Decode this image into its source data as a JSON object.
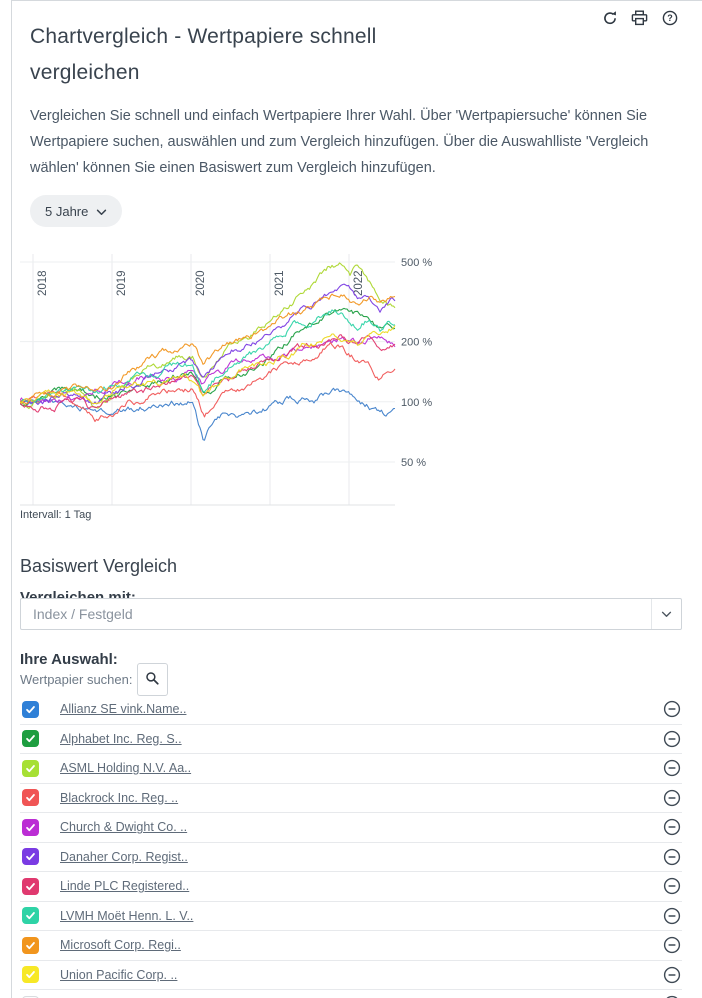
{
  "header": {
    "title": "Chartvergleich - Wertpapiere schnell vergleichen",
    "actions": [
      {
        "name": "refresh",
        "icon": "refresh-icon"
      },
      {
        "name": "print",
        "icon": "printer-icon"
      },
      {
        "name": "help",
        "icon": "help-icon"
      }
    ]
  },
  "intro": {
    "text": "Vergleichen Sie schnell und einfach Wertpapiere Ihrer Wahl. Über 'Wertpapiersuche' können Sie Wertpapiere suchen, auswählen und zum Vergleich hinzufügen. Über die Auswahlliste 'Vergleich wählen' können Sie einen Basiswert zum Vergleich hinzufügen."
  },
  "period_selector": {
    "label": "5 Jahre"
  },
  "chart_data": {
    "type": "line",
    "title": "",
    "x_ticks": [
      "2018",
      "2019",
      "2020",
      "2021",
      "2022"
    ],
    "y_scale": "log",
    "y_unit": "%",
    "y_ticks": [
      {
        "value": 500,
        "label": "500 %"
      },
      {
        "value": 200,
        "label": "200 %"
      },
      {
        "value": 100,
        "label": "100 %"
      },
      {
        "value": 50,
        "label": "50 %"
      }
    ],
    "y_range": [
      30,
      520
    ],
    "grid": true,
    "legend_position": "none",
    "interval_note": "Intervall: 1 Tag",
    "series": [
      {
        "name": "Allianz SE vink.Name..",
        "color": "#3f7fca",
        "points": [
          [
            0,
            100
          ],
          [
            0.1,
            98
          ],
          [
            0.2,
            88
          ],
          [
            0.246,
            85
          ],
          [
            0.35,
            95
          ],
          [
            0.42,
            100
          ],
          [
            0.46,
            101
          ],
          [
            0.49,
            60
          ],
          [
            0.52,
            80
          ],
          [
            0.55,
            85
          ],
          [
            0.6,
            82
          ],
          [
            0.67,
            95
          ],
          [
            0.72,
            105
          ],
          [
            0.78,
            102
          ],
          [
            0.82,
            110
          ],
          [
            0.86,
            112
          ],
          [
            0.9,
            105
          ],
          [
            0.94,
            95
          ],
          [
            0.97,
            88
          ],
          [
            1,
            92
          ]
        ]
      },
      {
        "name": "Alphabet Inc. Reg. S..",
        "color": "#1e9e40",
        "points": [
          [
            0,
            100
          ],
          [
            0.08,
            110
          ],
          [
            0.15,
            115
          ],
          [
            0.2,
            105
          ],
          [
            0.246,
            106
          ],
          [
            0.3,
            115
          ],
          [
            0.35,
            120
          ],
          [
            0.42,
            130
          ],
          [
            0.46,
            135
          ],
          [
            0.49,
            110
          ],
          [
            0.55,
            135
          ],
          [
            0.6,
            145
          ],
          [
            0.67,
            165
          ],
          [
            0.72,
            200
          ],
          [
            0.78,
            240
          ],
          [
            0.82,
            270
          ],
          [
            0.86,
            290
          ],
          [
            0.9,
            270
          ],
          [
            0.93,
            250
          ],
          [
            0.96,
            230
          ],
          [
            1,
            240
          ]
        ]
      },
      {
        "name": "ASML Holding N.V. Aa..",
        "color": "#abd62c",
        "points": [
          [
            0,
            100
          ],
          [
            0.08,
            105
          ],
          [
            0.15,
            112
          ],
          [
            0.2,
            95
          ],
          [
            0.246,
            110
          ],
          [
            0.3,
            125
          ],
          [
            0.35,
            140
          ],
          [
            0.42,
            160
          ],
          [
            0.46,
            165
          ],
          [
            0.49,
            130
          ],
          [
            0.55,
            180
          ],
          [
            0.6,
            200
          ],
          [
            0.67,
            250
          ],
          [
            0.72,
            300
          ],
          [
            0.78,
            380
          ],
          [
            0.82,
            460
          ],
          [
            0.85,
            500
          ],
          [
            0.88,
            430
          ],
          [
            0.9,
            480
          ],
          [
            0.93,
            400
          ],
          [
            0.96,
            330
          ],
          [
            1,
            290
          ]
        ]
      },
      {
        "name": "Blackrock Inc. Reg. ..",
        "color": "#f05555",
        "points": [
          [
            0,
            100
          ],
          [
            0.08,
            105
          ],
          [
            0.15,
            95
          ],
          [
            0.2,
            85
          ],
          [
            0.246,
            92
          ],
          [
            0.3,
            100
          ],
          [
            0.35,
            105
          ],
          [
            0.42,
            115
          ],
          [
            0.46,
            116
          ],
          [
            0.49,
            85
          ],
          [
            0.55,
            110
          ],
          [
            0.6,
            115
          ],
          [
            0.67,
            140
          ],
          [
            0.72,
            160
          ],
          [
            0.78,
            175
          ],
          [
            0.82,
            195
          ],
          [
            0.86,
            190
          ],
          [
            0.9,
            160
          ],
          [
            0.93,
            150
          ],
          [
            0.96,
            130
          ],
          [
            1,
            145
          ]
        ]
      },
      {
        "name": "Church & Dwight Co. ..",
        "color": "#bb2dd4",
        "points": [
          [
            0,
            100
          ],
          [
            0.08,
            105
          ],
          [
            0.15,
            110
          ],
          [
            0.2,
            115
          ],
          [
            0.246,
            120
          ],
          [
            0.3,
            130
          ],
          [
            0.35,
            140
          ],
          [
            0.42,
            135
          ],
          [
            0.46,
            140
          ],
          [
            0.49,
            125
          ],
          [
            0.55,
            150
          ],
          [
            0.6,
            160
          ],
          [
            0.67,
            165
          ],
          [
            0.72,
            170
          ],
          [
            0.78,
            185
          ],
          [
            0.82,
            200
          ],
          [
            0.86,
            210
          ],
          [
            0.9,
            200
          ],
          [
            0.93,
            215
          ],
          [
            0.96,
            205
          ],
          [
            1,
            195
          ]
        ]
      },
      {
        "name": "Danaher Corp. Regist..",
        "color": "#7a3be3",
        "points": [
          [
            0,
            100
          ],
          [
            0.08,
            102
          ],
          [
            0.15,
            108
          ],
          [
            0.2,
            100
          ],
          [
            0.246,
            110
          ],
          [
            0.3,
            125
          ],
          [
            0.35,
            135
          ],
          [
            0.42,
            150
          ],
          [
            0.46,
            160
          ],
          [
            0.49,
            130
          ],
          [
            0.55,
            175
          ],
          [
            0.6,
            195
          ],
          [
            0.67,
            220
          ],
          [
            0.72,
            270
          ],
          [
            0.78,
            300
          ],
          [
            0.82,
            330
          ],
          [
            0.86,
            360
          ],
          [
            0.9,
            330
          ],
          [
            0.93,
            345
          ],
          [
            0.96,
            310
          ],
          [
            1,
            330
          ]
        ]
      },
      {
        "name": "Linde PLC Registered..",
        "color": "#e0396f",
        "points": [
          [
            0,
            100
          ],
          [
            0.08,
            98
          ],
          [
            0.15,
            100
          ],
          [
            0.2,
            90
          ],
          [
            0.246,
            100
          ],
          [
            0.3,
            110
          ],
          [
            0.35,
            115
          ],
          [
            0.42,
            125
          ],
          [
            0.46,
            130
          ],
          [
            0.49,
            105
          ],
          [
            0.55,
            130
          ],
          [
            0.6,
            140
          ],
          [
            0.67,
            155
          ],
          [
            0.72,
            170
          ],
          [
            0.78,
            180
          ],
          [
            0.82,
            195
          ],
          [
            0.86,
            200
          ],
          [
            0.9,
            185
          ],
          [
            0.93,
            200
          ],
          [
            0.96,
            175
          ],
          [
            1,
            190
          ]
        ]
      },
      {
        "name": "LVMH Moët Henn. L. V..",
        "color": "#2ed3a6",
        "points": [
          [
            0,
            100
          ],
          [
            0.08,
            108
          ],
          [
            0.15,
            118
          ],
          [
            0.2,
            105
          ],
          [
            0.246,
            115
          ],
          [
            0.3,
            135
          ],
          [
            0.35,
            140
          ],
          [
            0.42,
            155
          ],
          [
            0.46,
            150
          ],
          [
            0.49,
            115
          ],
          [
            0.55,
            150
          ],
          [
            0.6,
            165
          ],
          [
            0.67,
            200
          ],
          [
            0.72,
            240
          ],
          [
            0.78,
            260
          ],
          [
            0.82,
            290
          ],
          [
            0.86,
            300
          ],
          [
            0.9,
            250
          ],
          [
            0.93,
            270
          ],
          [
            0.96,
            230
          ],
          [
            1,
            255
          ]
        ]
      },
      {
        "name": "Microsoft Corp. Regi..",
        "color": "#f1951d",
        "points": [
          [
            0,
            100
          ],
          [
            0.08,
            110
          ],
          [
            0.15,
            120
          ],
          [
            0.2,
            115
          ],
          [
            0.246,
            125
          ],
          [
            0.3,
            145
          ],
          [
            0.35,
            160
          ],
          [
            0.42,
            185
          ],
          [
            0.46,
            200
          ],
          [
            0.49,
            150
          ],
          [
            0.55,
            200
          ],
          [
            0.6,
            215
          ],
          [
            0.67,
            235
          ],
          [
            0.72,
            270
          ],
          [
            0.78,
            300
          ],
          [
            0.82,
            330
          ],
          [
            0.86,
            350
          ],
          [
            0.9,
            310
          ],
          [
            0.93,
            330
          ],
          [
            0.96,
            290
          ],
          [
            1,
            320
          ]
        ]
      },
      {
        "name": "Union Pacific Corp. ..",
        "color": "#ecd81f",
        "points": [
          [
            0,
            100
          ],
          [
            0.08,
            108
          ],
          [
            0.15,
            115
          ],
          [
            0.2,
            105
          ],
          [
            0.246,
            115
          ],
          [
            0.3,
            125
          ],
          [
            0.35,
            130
          ],
          [
            0.42,
            140
          ],
          [
            0.46,
            135
          ],
          [
            0.49,
            105
          ],
          [
            0.55,
            140
          ],
          [
            0.6,
            150
          ],
          [
            0.67,
            160
          ],
          [
            0.72,
            175
          ],
          [
            0.78,
            195
          ],
          [
            0.82,
            210
          ],
          [
            0.86,
            205
          ],
          [
            0.9,
            195
          ],
          [
            0.93,
            225
          ],
          [
            0.96,
            215
          ],
          [
            1,
            230
          ]
        ]
      }
    ]
  },
  "comparison": {
    "heading": "Basiswert Vergleich",
    "compare_label": "Vergleichen mit:",
    "select_value": "Index / Festgeld",
    "selection_label": "Ihre Auswahl:",
    "search_label": "Wertpapier suchen:"
  },
  "securities": [
    {
      "label": "Allianz SE vink.Name..",
      "color": "#2f80d7",
      "checked": true
    },
    {
      "label": "Alphabet Inc. Reg. S..",
      "color": "#1e9e40",
      "checked": true
    },
    {
      "label": "ASML Holding N.V. Aa..",
      "color": "#a6e034",
      "checked": true
    },
    {
      "label": "Blackrock Inc. Reg. ..",
      "color": "#f05555",
      "checked": true
    },
    {
      "label": "Church & Dwight Co. ..",
      "color": "#bb2dd4",
      "checked": true
    },
    {
      "label": "Danaher Corp. Regist..",
      "color": "#7a3be3",
      "checked": true
    },
    {
      "label": "Linde PLC Registered..",
      "color": "#e0396f",
      "checked": true
    },
    {
      "label": "LVMH Moët Henn. L. V..",
      "color": "#2ed3a6",
      "checked": true
    },
    {
      "label": "Microsoft Corp. Regi..",
      "color": "#f1951d",
      "checked": true
    },
    {
      "label": "Union Pacific Corp. ..",
      "color": "#f7e826",
      "checked": true
    },
    {
      "label": "",
      "color": null,
      "checked": false
    }
  ]
}
